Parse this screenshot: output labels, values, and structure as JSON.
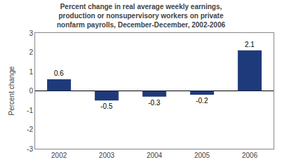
{
  "chart_data": {
    "type": "bar",
    "title": "Percent change in real average weekly earnings,\nproduction or nonsupervisory workers on private\nnonfarm payrolls, December-December, 2002-2006",
    "ylabel": "Percent change",
    "categories": [
      "2002",
      "2003",
      "2004",
      "2005",
      "2006"
    ],
    "values": [
      0.6,
      -0.5,
      -0.3,
      -0.2,
      2.1
    ],
    "color": "#1F3A7A",
    "ylim": [
      -3,
      3
    ],
    "yticks": [
      -3,
      -2,
      -1,
      0,
      1,
      2,
      3
    ],
    "grid": false,
    "data_labels": true
  }
}
